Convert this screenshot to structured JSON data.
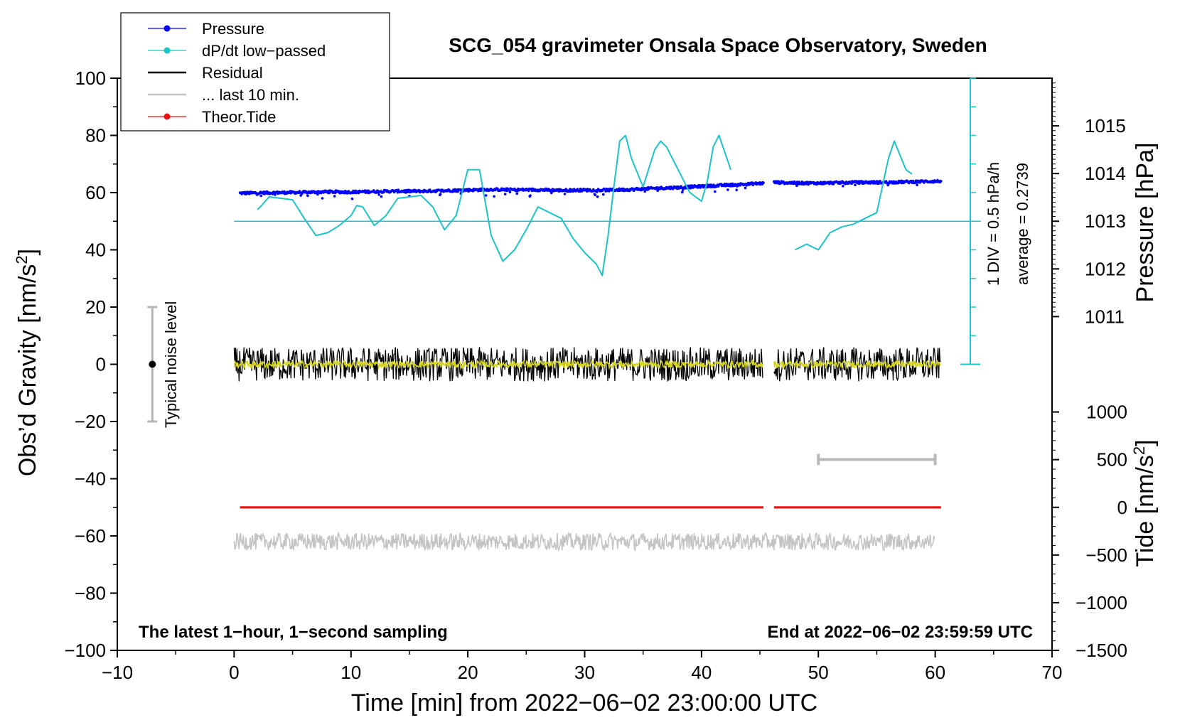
{
  "chart_data": {
    "type": "line",
    "title": "SCG_054 gravimeter Onsala Space Observatory, Sweden",
    "xlabel": "Time [min] from 2022−06−02 23:00:00 UTC",
    "ylabel_main": "Obs’d Gravity [nm/s",
    "ylabel_main_sup": "2",
    "ylabel_main_close": "]",
    "ylabel_pressure": "Pressure [hPa]",
    "ylabel_tide": "Tide [nm/s",
    "ylabel_tide_sup": "2",
    "ylabel_tide_close": "]",
    "xlim": [
      -10,
      70
    ],
    "ylim": [
      -100,
      100
    ],
    "x_ticks": [
      -10,
      0,
      10,
      20,
      30,
      40,
      50,
      60,
      70
    ],
    "x_tick_labels": [
      "−10",
      "0",
      "10",
      "20",
      "30",
      "40",
      "50",
      "60",
      "70"
    ],
    "y_ticks": [
      -100,
      -80,
      -60,
      -40,
      -20,
      0,
      20,
      40,
      60,
      80,
      100
    ],
    "y_tick_labels": [
      "−100",
      "−80",
      "−60",
      "−40",
      "−20",
      "0",
      "20",
      "40",
      "60",
      "80",
      "100"
    ],
    "pressure_axis": {
      "ticks": [
        1011,
        1012,
        1013,
        1014,
        1015
      ],
      "tick_labels": [
        "1011",
        "1012",
        "1013",
        "1014",
        "1015"
      ],
      "gravity_at_1011": 16.667,
      "gravity_per_hpa": 16.667
    },
    "tide_axis": {
      "ticks": [
        -1500,
        -1000,
        -500,
        0,
        500,
        1000
      ],
      "tick_labels": [
        "−1500",
        "−1000",
        "−500",
        "0",
        "500",
        "1000"
      ],
      "gravity_at_zero": -50,
      "gravity_per_unit": 0.03333
    },
    "dpdt_scale": {
      "label_div": "1 DIV = 0.5 hPa/h",
      "label_avg": "average = 0.2739",
      "x": 63,
      "ymin": 0,
      "ymax": 100,
      "baseline": 50,
      "tick_step": 10
    },
    "noise_bar": {
      "label": "Typical noise level",
      "x": -7,
      "low": -20,
      "high": 20,
      "center": 0
    },
    "last10_bar": {
      "x_start": 50,
      "x_end": 60,
      "y": -33.3
    },
    "series": [
      {
        "name": "Pressure",
        "color": "#0000ff",
        "points": [
          [
            0.5,
            59.8
          ],
          [
            2,
            59.9
          ],
          [
            4,
            60.0
          ],
          [
            6,
            60.1
          ],
          [
            8,
            60.3
          ],
          [
            10,
            60.2
          ],
          [
            12,
            60.4
          ],
          [
            14,
            60.5
          ],
          [
            16,
            60.5
          ],
          [
            18,
            60.7
          ],
          [
            20,
            60.9
          ],
          [
            22,
            61.1
          ],
          [
            24,
            61.0
          ],
          [
            26,
            61.0
          ],
          [
            28,
            60.8
          ],
          [
            30,
            60.9
          ],
          [
            32,
            60.9
          ],
          [
            34,
            61.1
          ],
          [
            36,
            61.5
          ],
          [
            38,
            61.8
          ],
          [
            40,
            62.2
          ],
          [
            42,
            62.6
          ],
          [
            44,
            63.0
          ],
          [
            45.3,
            63.3
          ],
          null,
          [
            46.2,
            63.6
          ],
          [
            48,
            63.4
          ],
          [
            50,
            63.3
          ],
          [
            52,
            63.5
          ],
          [
            54,
            63.6
          ],
          [
            56,
            63.6
          ],
          [
            58,
            63.8
          ],
          [
            60.5,
            64.0
          ]
        ]
      },
      {
        "name": "dP/dt low−passed",
        "color": "#1cc3c8",
        "points": [
          [
            2,
            54
          ],
          [
            3,
            58.5
          ],
          [
            4,
            58
          ],
          [
            5,
            57.5
          ],
          [
            6,
            51
          ],
          [
            7,
            45
          ],
          [
            8,
            46
          ],
          [
            9,
            48.5
          ],
          [
            10,
            52
          ],
          [
            10.5,
            55.5
          ],
          [
            11,
            55
          ],
          [
            12,
            48.5
          ],
          [
            13,
            52
          ],
          [
            14,
            58
          ],
          [
            15,
            58.5
          ],
          [
            16,
            59
          ],
          [
            17,
            55
          ],
          [
            18,
            47
          ],
          [
            19,
            52
          ],
          [
            20,
            68
          ],
          [
            21,
            68
          ],
          [
            22,
            45
          ],
          [
            23,
            36
          ],
          [
            24,
            40
          ],
          [
            25,
            47
          ],
          [
            26,
            55
          ],
          [
            27,
            53
          ],
          [
            28,
            51
          ],
          [
            29,
            44
          ],
          [
            30,
            39
          ],
          [
            31,
            35
          ],
          [
            31.5,
            31
          ],
          [
            32,
            45
          ],
          [
            32.5,
            62
          ],
          [
            33,
            78
          ],
          [
            33.5,
            80
          ],
          [
            34,
            72
          ],
          [
            35,
            62
          ],
          [
            36,
            75
          ],
          [
            36.5,
            78
          ],
          [
            37,
            76
          ],
          [
            38,
            68
          ],
          [
            39,
            60
          ],
          [
            40,
            57
          ],
          [
            40.5,
            64
          ],
          [
            41,
            76
          ],
          [
            41.5,
            80
          ],
          [
            42,
            74
          ],
          [
            42.5,
            68
          ],
          null,
          [
            48,
            40
          ],
          [
            49,
            42
          ],
          [
            50,
            40
          ],
          [
            51,
            46
          ],
          [
            52,
            48
          ],
          [
            53,
            49
          ],
          [
            54,
            51
          ],
          [
            55,
            53
          ],
          [
            56,
            72
          ],
          [
            56.5,
            78
          ],
          [
            57,
            73
          ],
          [
            57.5,
            68
          ],
          [
            58,
            66.5
          ]
        ]
      },
      {
        "name": "Residual",
        "color": "#000000",
        "points": [
          [
            0,
            0
          ],
          [
            45.3,
            0
          ],
          null,
          [
            46.2,
            0
          ],
          [
            60.5,
            0
          ]
        ],
        "noise_amplitude": 6
      },
      {
        "name": "... last 10 min.",
        "color": "#c4c4c4",
        "points": [
          [
            0,
            -62
          ],
          [
            60,
            -62
          ]
        ],
        "noise_amplitude": 3
      },
      {
        "name": "Theor.Tide",
        "color": "#ee1111",
        "points": [
          [
            0.5,
            -50
          ],
          [
            45.3,
            -50
          ],
          null,
          [
            46.2,
            -50
          ],
          [
            60.5,
            -50
          ]
        ]
      },
      {
        "name": "Residual smoothed",
        "color": "#d6d622",
        "points": [
          [
            0,
            0
          ],
          [
            45.3,
            0
          ],
          null,
          [
            46.2,
            0
          ],
          [
            60.5,
            0
          ]
        ],
        "noise_amplitude": 1.2
      }
    ],
    "legend": [
      {
        "label": "Pressure",
        "color": "#0000ff",
        "marker": true
      },
      {
        "label": "dP/dt low−passed",
        "color": "#1cc3c8",
        "marker": true
      },
      {
        "label": "Residual",
        "color": "#000000",
        "marker": false
      },
      {
        "label": "... last 10 min.",
        "color": "#c4c4c4",
        "marker": false
      },
      {
        "label": "Theor.Tide",
        "color": "#ee1111",
        "marker": true
      }
    ],
    "legend_position": "top-left",
    "annotations": {
      "bottom_left": "The latest 1−hour, 1−second sampling",
      "bottom_right": "End at 2022−06−02 23:59:59 UTC"
    },
    "grid": false
  }
}
